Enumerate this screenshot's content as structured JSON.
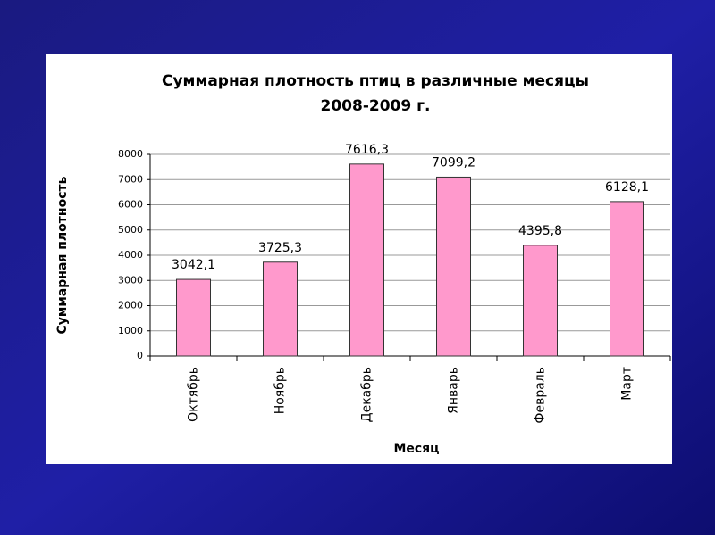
{
  "chart_data": {
    "type": "bar",
    "title": [
      "Суммарная плотность птиц в различные месяцы",
      "2008-2009 г."
    ],
    "x_label": "Месяц",
    "y_label": "Суммарная плотность",
    "categories": [
      "Октябрь",
      "Ноябрь",
      "Декабрь",
      "Январь",
      "Февраль",
      "Март"
    ],
    "values": [
      3042.1,
      3725.3,
      7616.3,
      7099.2,
      4395.8,
      6128.1
    ],
    "value_labels": [
      "3042,1",
      "3725,3",
      "7616,3",
      "7099,2",
      "4395,8",
      "6128,1"
    ],
    "color": "#ff99cc",
    "ylim": [
      0,
      8000
    ],
    "yticks": [
      0,
      1000,
      2000,
      3000,
      4000,
      5000,
      6000,
      7000,
      8000
    ],
    "grid": true
  }
}
